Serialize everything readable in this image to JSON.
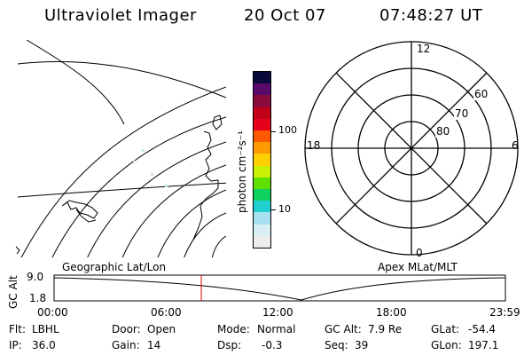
{
  "header": {
    "title": "Ultraviolet Imager",
    "date": "20 Oct 07",
    "time": "07:48:27 UT"
  },
  "colorbar": {
    "label": "photon cm⁻²s⁻¹",
    "ticks": [
      "100",
      "10"
    ],
    "colors": [
      "#0a0a3a",
      "#5a0a6a",
      "#8a0a3a",
      "#c00018",
      "#e6001a",
      "#ff5a00",
      "#ff9a00",
      "#ffd000",
      "#c8f000",
      "#60e000",
      "#10d060",
      "#20d0d0",
      "#a8e0f0",
      "#d8eef4",
      "#ededed"
    ]
  },
  "polar": {
    "labels": {
      "top": "12",
      "right": "6",
      "bottom": "0",
      "left": "18"
    },
    "rings": [
      "60",
      "70",
      "80"
    ]
  },
  "panels": {
    "left_label": "Geographic Lat/Lon",
    "right_label": "Apex MLat/MLT"
  },
  "timeline": {
    "axis_label": "GC Alt",
    "y_top": "9.0",
    "y_bottom": "1.8",
    "x_ticks": [
      "00:00",
      "06:00",
      "12:00",
      "18:00",
      "23:59"
    ],
    "marker_color": "#e00000"
  },
  "info": {
    "flt_label": "Flt:",
    "flt_value": "LBHL",
    "ip_label": "IP:",
    "ip_value": "36.0",
    "door_label": "Door:",
    "door_value": "Open",
    "gain_label": "Gain:",
    "gain_value": "14",
    "mode_label": "Mode:",
    "mode_value": "Normal",
    "dsp_label": "Dsp:",
    "dsp_value": "-0.3",
    "gcalt_label": "GC Alt:",
    "gcalt_value": "7.9 Re",
    "seq_label": "Seq:",
    "seq_value": "39",
    "glat_label": "GLat:",
    "glat_value": "-54.4",
    "glon_label": "GLon:",
    "glon_value": "197.1"
  }
}
